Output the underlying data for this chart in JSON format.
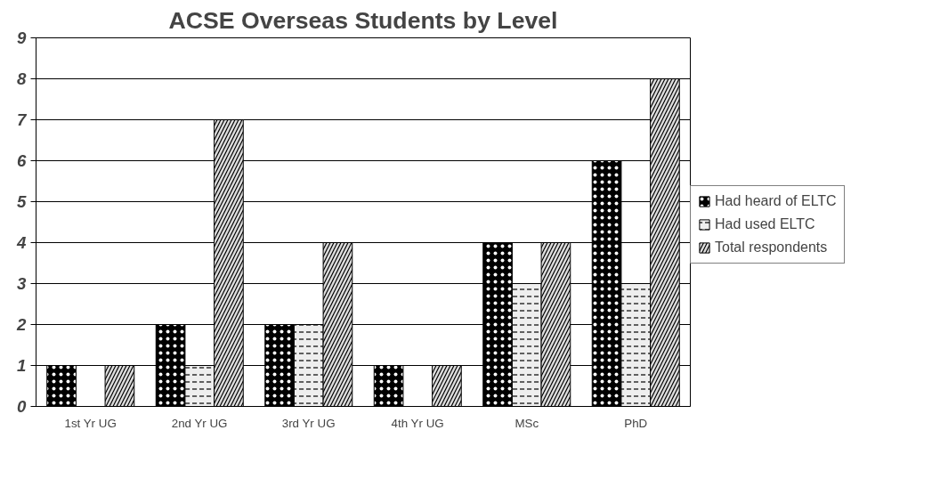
{
  "chart_data": {
    "type": "bar",
    "title": "ACSE Overseas Students by Level",
    "categories": [
      "1st Yr UG",
      "2nd Yr UG",
      "3rd Yr UG",
      "4th Yr UG",
      "MSc",
      "PhD"
    ],
    "series": [
      {
        "name": "Had heard of ELTC",
        "color": "#000000",
        "values": [
          1,
          2,
          2,
          1,
          4,
          6
        ]
      },
      {
        "name": "Had used ELTC",
        "color": "#eeeeee",
        "values": [
          null,
          1,
          2,
          null,
          3,
          3
        ]
      },
      {
        "name": "Total respondents",
        "color": "#dddddd",
        "values": [
          1,
          7,
          4,
          1,
          4,
          8
        ]
      }
    ],
    "ylim": [
      0,
      9
    ],
    "yticks": [
      0,
      1,
      2,
      3,
      4,
      5,
      6,
      7,
      8,
      9
    ],
    "grid": "y",
    "legend": "right"
  }
}
